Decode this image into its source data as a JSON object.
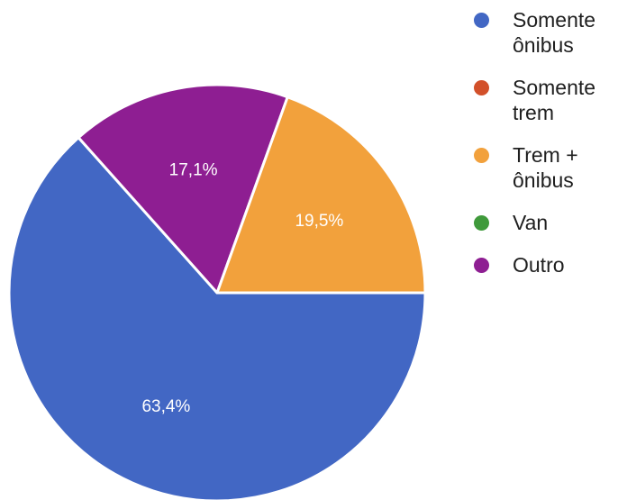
{
  "chart_data": {
    "type": "pie",
    "title": "",
    "slices": [
      {
        "label": "Somente\nônibus",
        "value": 63.4,
        "value_label": "63,4%",
        "color": "#4267c4"
      },
      {
        "label": "Somente\ntrem",
        "value": 0,
        "value_label": "",
        "color": "#d2502a"
      },
      {
        "label": "Trem +\nônibus",
        "value": 19.5,
        "value_label": "19,5%",
        "color": "#f2a13c"
      },
      {
        "label": "Van",
        "value": 0,
        "value_label": "",
        "color": "#3f9a3b"
      },
      {
        "label": "Outro",
        "value": 17.1,
        "value_label": "17,1%",
        "color": "#8e1e92"
      }
    ],
    "legend_position": "right",
    "slice_order": "clockwise from 3 o'clock: Somente ônibus, then Outro, then Trem + ônibus"
  }
}
